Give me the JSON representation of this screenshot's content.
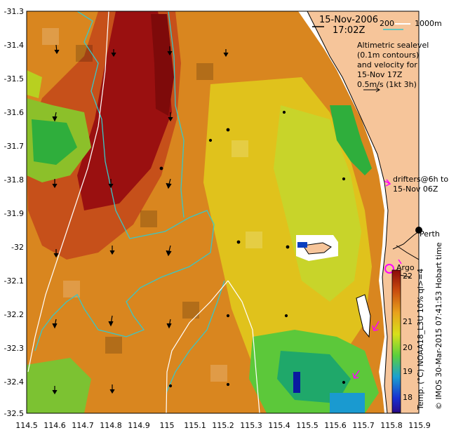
{
  "header": {
    "date": "15-Nov-2006",
    "time": "17:02Z"
  },
  "bathymetry_legend": {
    "label_200": "200",
    "label_1000": "1000m",
    "colors": {
      "c200": "#ffffff",
      "c1000": "#39c7c7"
    }
  },
  "info_lines": [
    "Altimetric sealevel",
    "(0.1m contours)",
    "and velocity for",
    "15-Nov 17Z",
    "0.5m/s (1kt 3h)"
  ],
  "drifters_lines": [
    "drifters@6h to",
    "15-Nov 06Z"
  ],
  "places": {
    "perth": "Perth",
    "argo": "Argo"
  },
  "credits": {
    "left": "© IMOS 30-Mar-2015 07:41:53 Hobart time",
    "right": "Temp. (°C) NOAA18_L3U 10% ql>=4"
  },
  "colorbar": {
    "ticks": [
      "22",
      "21",
      "20",
      "19",
      "18"
    ],
    "range": [
      17.4,
      22.8
    ],
    "stops": [
      "#8a0a0a",
      "#c84a0e",
      "#e8a21c",
      "#d8e01a",
      "#5cd03c",
      "#1aa0d0",
      "#1a2fd0",
      "#2a0a8a"
    ]
  },
  "axes": {
    "x_ticks": [
      "114.5",
      "114.6",
      "114.7",
      "114.8",
      "114.9",
      "115",
      "115.1",
      "115.2",
      "115.3",
      "115.4",
      "115.5",
      "115.6",
      "115.7",
      "115.8",
      "115.9"
    ],
    "y_ticks": [
      "-31.3",
      "-31.4",
      "-31.5",
      "-31.6",
      "-31.7",
      "-31.8",
      "-31.9",
      "-32",
      "-32.1",
      "-32.2",
      "-32.3",
      "-32.4",
      "-32.5"
    ],
    "xlim": [
      114.5,
      115.9
    ],
    "ylim": [
      -32.5,
      -31.3
    ]
  },
  "colors": {
    "land": "#f6c59a",
    "coast": "#000000",
    "drifter": "#ff00ff",
    "warm": "#c6501a",
    "hot": "#9a1010"
  }
}
